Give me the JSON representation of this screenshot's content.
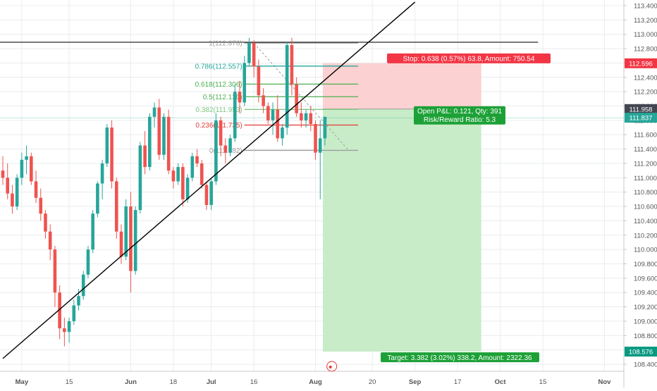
{
  "chart_data": {
    "type": "candlestick",
    "symbol_note": "",
    "ylim": [
      108.35,
      113.5
    ],
    "y_ticks": [
      "113.400",
      "113.200",
      "113.000",
      "112.800",
      "112.600",
      "112.400",
      "112.200",
      "112.000",
      "111.800",
      "111.600",
      "111.400",
      "111.200",
      "111.000",
      "110.800",
      "110.600",
      "110.400",
      "110.200",
      "110.000",
      "109.800",
      "109.600",
      "109.400",
      "109.200",
      "109.000",
      "108.800",
      "108.600",
      "108.400"
    ],
    "x_ticks": [
      {
        "label": "May",
        "bar": 4
      },
      {
        "label": "15",
        "bar": 14
      },
      {
        "label": "Jun",
        "bar": 27
      },
      {
        "label": "18",
        "bar": 36
      },
      {
        "label": "Jul",
        "bar": 44
      },
      {
        "label": "16",
        "bar": 53
      },
      {
        "label": "Aug",
        "bar": 66
      },
      {
        "label": "20",
        "bar": 78
      },
      {
        "label": "Sep",
        "bar": 87
      },
      {
        "label": "17",
        "bar": 96
      },
      {
        "label": "Oct",
        "bar": 105
      },
      {
        "label": "15",
        "bar": 114
      },
      {
        "label": "Nov",
        "bar": 127
      }
    ],
    "candles": [
      [
        111.1,
        111.3,
        110.9,
        111.0
      ],
      [
        111.0,
        111.2,
        110.7,
        110.78
      ],
      [
        110.78,
        110.9,
        110.5,
        110.6
      ],
      [
        110.6,
        111.05,
        110.55,
        111.0
      ],
      [
        111.0,
        111.35,
        110.9,
        111.25
      ],
      [
        111.25,
        111.45,
        111.05,
        111.3
      ],
      [
        111.3,
        111.35,
        110.9,
        110.95
      ],
      [
        110.95,
        111.1,
        110.65,
        110.72
      ],
      [
        110.72,
        110.85,
        110.4,
        110.5
      ],
      [
        110.5,
        110.55,
        110.15,
        110.25
      ],
      [
        110.25,
        110.35,
        109.85,
        110.0
      ],
      [
        110.0,
        110.05,
        109.2,
        109.4
      ],
      [
        109.4,
        109.5,
        108.75,
        108.9
      ],
      [
        108.9,
        109.05,
        108.65,
        108.85
      ],
      [
        108.85,
        109.05,
        108.7,
        109.0
      ],
      [
        109.0,
        109.3,
        108.95,
        109.22
      ],
      [
        109.22,
        109.45,
        109.15,
        109.35
      ],
      [
        109.35,
        109.7,
        109.3,
        109.65
      ],
      [
        109.65,
        110.05,
        109.6,
        110.0
      ],
      [
        110.0,
        110.55,
        109.95,
        110.5
      ],
      [
        110.5,
        110.95,
        110.45,
        110.92
      ],
      [
        110.92,
        111.25,
        110.7,
        111.2
      ],
      [
        111.2,
        111.75,
        111.15,
        111.7
      ],
      [
        111.7,
        111.8,
        110.85,
        110.95
      ],
      [
        110.95,
        111.0,
        110.15,
        110.25
      ],
      [
        110.25,
        110.35,
        109.8,
        109.9
      ],
      [
        109.9,
        110.7,
        109.85,
        110.6
      ],
      [
        110.6,
        110.8,
        109.4,
        109.7
      ],
      [
        109.7,
        110.6,
        109.65,
        110.55
      ],
      [
        110.55,
        111.5,
        110.5,
        111.45
      ],
      [
        111.45,
        111.65,
        111.05,
        111.15
      ],
      [
        111.15,
        111.9,
        111.1,
        111.85
      ],
      [
        111.85,
        112.05,
        111.7,
        111.98
      ],
      [
        111.98,
        112.1,
        111.25,
        111.32
      ],
      [
        111.32,
        111.9,
        111.25,
        111.85
      ],
      [
        111.85,
        111.95,
        111.05,
        111.1
      ],
      [
        111.1,
        111.15,
        110.85,
        110.95
      ],
      [
        110.95,
        111.2,
        110.9,
        111.15
      ],
      [
        111.15,
        111.2,
        110.6,
        110.7
      ],
      [
        110.7,
        111.05,
        110.65,
        111.0
      ],
      [
        111.0,
        111.35,
        110.95,
        111.3
      ],
      [
        111.3,
        111.4,
        111.15,
        111.2
      ],
      [
        111.2,
        111.25,
        110.85,
        110.9
      ],
      [
        110.9,
        110.95,
        110.55,
        110.62
      ],
      [
        110.62,
        111.0,
        110.55,
        110.95
      ],
      [
        110.95,
        111.9,
        110.9,
        111.8
      ],
      [
        111.8,
        111.85,
        111.3,
        111.45
      ],
      [
        111.45,
        111.55,
        111.2,
        111.35
      ],
      [
        111.35,
        111.6,
        111.3,
        111.55
      ],
      [
        111.55,
        112.3,
        111.5,
        112.2
      ],
      [
        112.2,
        112.35,
        111.9,
        112.05
      ],
      [
        112.05,
        112.7,
        112.0,
        112.6
      ],
      [
        112.6,
        112.95,
        112.55,
        112.88
      ],
      [
        112.88,
        112.92,
        112.4,
        112.55
      ],
      [
        112.55,
        112.65,
        112.05,
        112.15
      ],
      [
        112.15,
        112.25,
        111.9,
        112.0
      ],
      [
        112.0,
        112.05,
        111.75,
        111.8
      ],
      [
        111.8,
        112.05,
        111.6,
        111.95
      ],
      [
        111.95,
        112.15,
        111.5,
        111.55
      ],
      [
        111.55,
        111.75,
        111.45,
        111.7
      ],
      [
        111.7,
        112.9,
        111.6,
        112.85
      ],
      [
        112.85,
        112.95,
        112.15,
        112.3
      ],
      [
        112.3,
        112.4,
        111.85,
        111.9
      ],
      [
        111.9,
        112.05,
        111.7,
        111.8
      ],
      [
        111.8,
        111.95,
        111.7,
        111.9
      ],
      [
        111.9,
        112.0,
        111.65,
        111.75
      ],
      [
        111.75,
        111.8,
        111.25,
        111.35
      ],
      [
        111.35,
        111.8,
        110.7,
        111.55
      ],
      [
        111.55,
        111.85,
        111.45,
        111.85
      ]
    ],
    "horizontal_line": 112.89,
    "fibonacci": [
      {
        "label": "1(112.878)",
        "value": 112.878,
        "color": "#9e9e9e"
      },
      {
        "label": "0.786(112.557)",
        "value": 112.557,
        "color": "#26a69a"
      },
      {
        "label": "0.618(112.306)",
        "value": 112.306,
        "color": "#4caf50"
      },
      {
        "label": "0.5(112.130)",
        "value": 112.13,
        "color": "#4caf50"
      },
      {
        "label": "0.382(111.953)",
        "value": 111.953,
        "color": "#81c784"
      },
      {
        "label": "0.236(111.735)",
        "value": 111.735,
        "color": "#e53935"
      },
      {
        "label": "0(111.382)",
        "value": 111.382,
        "color": "#9e9e9e"
      }
    ],
    "trendline": {
      "from": {
        "bar": 0,
        "price": 108.48
      },
      "to": {
        "bar": 87,
        "price": 113.45
      }
    },
    "position": {
      "entry": 111.958,
      "stop": 112.596,
      "target": 108.576,
      "current": 111.837,
      "start_bar": 68,
      "end_bar": 101,
      "stop_label": "Stop: 0.638 (0.57%) 63.8, Amount: 750.54",
      "pnl_label": "Open P&L: 0.121, Qty: 391",
      "rr_label": "Risk/Reward Ratio: 5.3",
      "target_label": "Target: 3.382 (3.02%) 338.2, Amount: 2322.36"
    },
    "price_tags": [
      {
        "text": "112.596",
        "bg": "#f23645",
        "fg": "#ffffff"
      },
      {
        "text": "111.958",
        "bg": "#434651",
        "fg": "#ffffff"
      },
      {
        "text": "111.837",
        "bg": "#26a69a",
        "fg": "#ffffff"
      },
      {
        "text": "108.576",
        "bg": "#089981",
        "fg": "#ffffff"
      }
    ],
    "colors": {
      "up": "#26a69a",
      "down": "#ef5350",
      "grid": "#e9ecef",
      "axis_text": "#555555",
      "profit": "#c8ecc8",
      "loss": "#fbd1d1",
      "stop_label": "#f23645",
      "target_label": "#1da137"
    }
  }
}
